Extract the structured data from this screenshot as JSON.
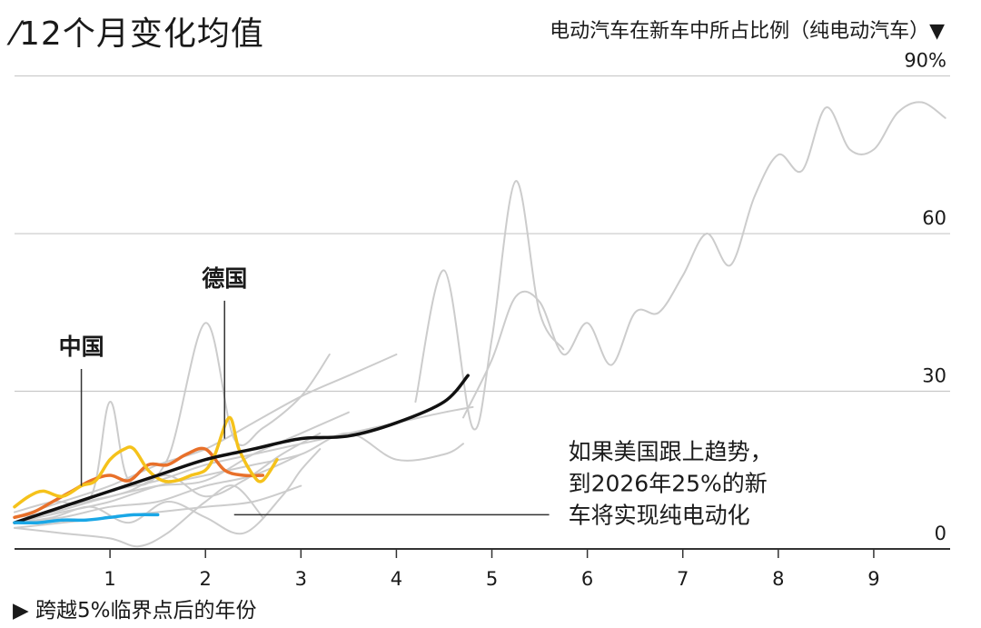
{
  "chart_data": {
    "type": "line",
    "title": "⁄12个月变化均值",
    "subtitle": "电动汽车在新车中所占比例（纯电动汽车）▼",
    "xlabel": "▶ 跨越5%临界点后的年份",
    "ylabel": "",
    "xlim": [
      0,
      9.8
    ],
    "ylim": [
      0,
      92
    ],
    "x_ticks": [
      1,
      2,
      3,
      4,
      5,
      6,
      7,
      8,
      9
    ],
    "x_tick_labels": [
      "1",
      "2",
      "3",
      "4",
      "5",
      "6",
      "7",
      "8",
      "9"
    ],
    "y_ticks": [
      0,
      30,
      60,
      90
    ],
    "y_tick_labels": [
      "0",
      "30",
      "60",
      "90%"
    ],
    "grid": true,
    "series": [
      {
        "name": "中国",
        "color": "#e8702a",
        "emphasis": true,
        "x": [
          0,
          0.2,
          0.4,
          0.6,
          0.8,
          1.0,
          1.2,
          1.4,
          1.6,
          1.8,
          2.0,
          2.2,
          2.4,
          2.6
        ],
        "y": [
          6,
          7,
          9,
          11,
          13,
          14,
          13,
          16,
          16,
          18,
          19,
          15,
          14,
          14
        ]
      },
      {
        "name": "德国",
        "color": "#f5c21b",
        "emphasis": true,
        "x": [
          0,
          0.15,
          0.3,
          0.5,
          0.7,
          0.85,
          1.0,
          1.15,
          1.25,
          1.4,
          1.55,
          1.7,
          1.85,
          2.0,
          2.1,
          2.25,
          2.35,
          2.5,
          2.6,
          2.75
        ],
        "y": [
          8,
          10,
          11,
          10,
          12,
          13,
          17,
          19,
          19,
          15,
          13,
          13,
          14,
          15,
          18,
          25,
          19,
          14,
          13,
          17
        ]
      },
      {
        "name": "",
        "color": "#111111",
        "emphasis": true,
        "x": [
          0,
          0.5,
          1.0,
          1.5,
          2.0,
          2.5,
          3.0,
          3.5,
          4.0,
          4.5,
          4.75
        ],
        "y": [
          5,
          8,
          11,
          14,
          17,
          19,
          21,
          21.5,
          24,
          28,
          33
        ]
      },
      {
        "name": "",
        "color": "#1aa7e6",
        "emphasis": true,
        "x": [
          0,
          0.25,
          0.5,
          0.75,
          1.0,
          1.25,
          1.5
        ],
        "y": [
          5,
          5,
          5.5,
          5.5,
          6,
          6.5,
          6.5
        ]
      },
      {
        "name": "",
        "color": "#cccccc",
        "emphasis": false,
        "x": [
          4.7,
          5.0,
          5.25,
          5.5,
          5.75,
          6.0,
          6.25,
          6.5,
          6.75,
          7.0,
          7.25,
          7.5,
          7.75,
          8.0,
          8.25,
          8.5,
          8.75,
          9.0,
          9.25,
          9.5,
          9.75
        ],
        "y": [
          25,
          36,
          48,
          47,
          37,
          43,
          35,
          45,
          45,
          52,
          60,
          54,
          67,
          75,
          72,
          84,
          76,
          76,
          83,
          85,
          82
        ]
      },
      {
        "name": "",
        "color": "#cccccc",
        "emphasis": false,
        "x": [
          4.2,
          4.5,
          4.8,
          5.0,
          5.25,
          5.5,
          5.75
        ],
        "y": [
          28,
          53,
          23,
          40,
          70,
          45,
          38
        ]
      },
      {
        "name": "",
        "color": "#cccccc",
        "emphasis": false,
        "x": [
          0,
          0.5,
          1.0,
          1.5,
          2.0,
          2.5,
          3.0,
          3.5,
          4.0,
          4.5,
          4.8
        ],
        "y": [
          5,
          8,
          11,
          13,
          16,
          18,
          20,
          22,
          24,
          26,
          27
        ]
      },
      {
        "name": "",
        "color": "#cccccc",
        "emphasis": false,
        "x": [
          0,
          0.5,
          1.0,
          1.5,
          2.0,
          2.5,
          3.0,
          3.5,
          4.0,
          4.5,
          4.7
        ],
        "y": [
          5,
          7,
          9,
          12,
          14,
          16,
          18,
          22,
          17,
          18,
          20
        ]
      },
      {
        "name": "",
        "color": "#cccccc",
        "emphasis": false,
        "x": [
          0,
          0.5,
          1.0,
          1.5,
          2.0,
          2.5,
          3.0,
          3.5,
          4.0
        ],
        "y": [
          6,
          9,
          12,
          16,
          19,
          24,
          29,
          33,
          37
        ]
      },
      {
        "name": "",
        "color": "#cccccc",
        "emphasis": false,
        "x": [
          0,
          0.5,
          1.0,
          1.5,
          2.0,
          2.5,
          3.0,
          3.5
        ],
        "y": [
          5,
          8,
          10,
          12,
          13,
          18,
          22,
          26
        ]
      },
      {
        "name": "",
        "color": "#cccccc",
        "emphasis": false,
        "x": [
          0,
          0.4,
          0.8,
          1.0,
          1.2,
          1.6,
          2.0,
          2.3,
          2.6,
          3.0,
          3.3
        ],
        "y": [
          7,
          9,
          10,
          28,
          13,
          17,
          43,
          21,
          23,
          29,
          37
        ]
      },
      {
        "name": "",
        "color": "#cccccc",
        "emphasis": false,
        "x": [
          0,
          0.5,
          1.0,
          1.5,
          2.0,
          2.5,
          3.0
        ],
        "y": [
          5,
          6,
          8,
          9,
          12,
          14,
          18
        ]
      },
      {
        "name": "",
        "color": "#cccccc",
        "emphasis": false,
        "x": [
          0,
          0.4,
          0.8,
          1.2,
          1.6,
          2.0,
          2.4,
          2.8,
          3.2
        ],
        "y": [
          6,
          7,
          9,
          11,
          14,
          10,
          13,
          18,
          22
        ]
      },
      {
        "name": "",
        "color": "#cccccc",
        "emphasis": false,
        "x": [
          0,
          0.5,
          1.0,
          1.5,
          2.0,
          2.5,
          3.0
        ],
        "y": [
          4,
          5,
          6,
          7,
          8,
          9,
          12
        ]
      },
      {
        "name": "",
        "color": "#cccccc",
        "emphasis": false,
        "x": [
          0,
          0.4,
          0.8,
          1.2,
          1.6,
          2.0,
          2.4,
          2.8,
          3.0,
          3.2
        ],
        "y": [
          5,
          6,
          8,
          5,
          9,
          6,
          3,
          10,
          15,
          19
        ]
      },
      {
        "name": "",
        "color": "#cccccc",
        "emphasis": false,
        "x": [
          0,
          0.5,
          1.0,
          1.3,
          1.6,
          2.0,
          2.3,
          2.6
        ],
        "y": [
          4,
          3,
          2,
          0.5,
          3,
          9,
          12,
          6
        ]
      }
    ],
    "annotations": [
      {
        "text": "中国",
        "x": 0.7,
        "y": 37
      },
      {
        "text": "德国",
        "x": 2.2,
        "y": 50
      },
      {
        "text_lines": [
          "如果美国跟上趋势，",
          "到2026年25%的新",
          "车将实现纯电动化"
        ],
        "x": 5.8,
        "y": 17
      }
    ]
  }
}
